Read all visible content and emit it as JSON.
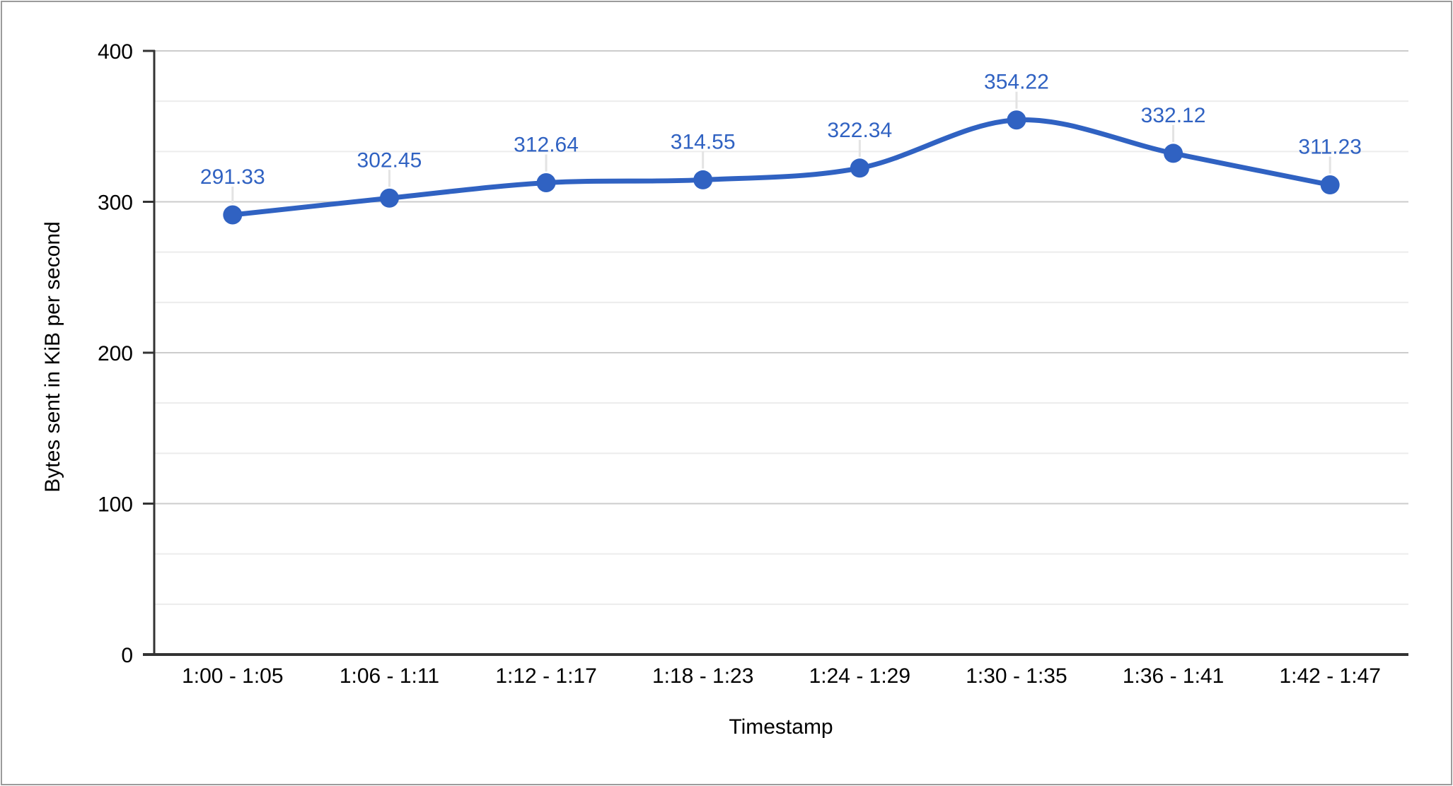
{
  "window": {
    "background": "#ffffff",
    "border_color": "#9b9b9b"
  },
  "chart_data": {
    "type": "line",
    "title": "",
    "xlabel": "Timestamp",
    "ylabel": "Bytes sent in KiB per second",
    "categories": [
      "1:00 - 1:05",
      "1:06 - 1:11",
      "1:12 - 1:17",
      "1:18 - 1:23",
      "1:24 - 1:29",
      "1:30 - 1:35",
      "1:36 - 1:41",
      "1:42 - 1:47"
    ],
    "series": [
      {
        "values": [
          291.33,
          302.45,
          312.64,
          314.55,
          322.34,
          354.22,
          332.12,
          311.23
        ],
        "point_labels": [
          "291.33",
          "302.45",
          "312.64",
          "314.55",
          "322.34",
          "354.22",
          "332.12",
          "311.23"
        ],
        "color": "#3062C2",
        "smooth": true,
        "marker": "circle"
      }
    ],
    "ylim": [
      0,
      400
    ],
    "y_ticks": [
      0,
      100,
      200,
      300,
      400
    ],
    "minor_gridlines_between_major": 2,
    "grid": "horizontal-only",
    "legend_position": "none",
    "styles": {
      "major_gridline_color": "#cccccc",
      "minor_gridline_color": "#ececec",
      "axis_line_color": "#333333",
      "tick_text_color": "#000000",
      "axis_title_color": "#000000",
      "data_label_color": "#3062C2",
      "leader_line_color": "#e3e3e3"
    }
  }
}
